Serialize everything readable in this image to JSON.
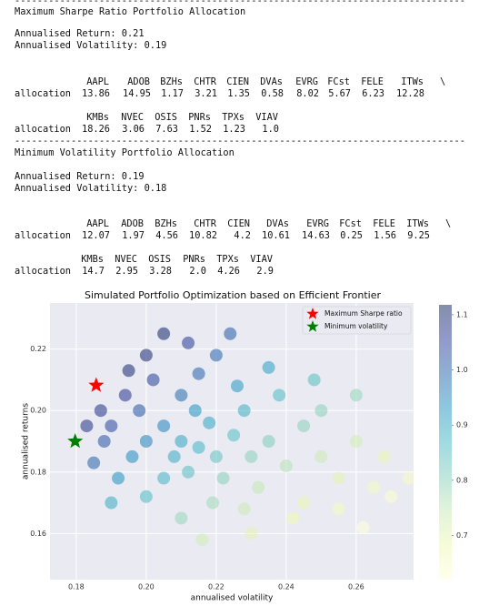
{
  "report": {
    "separator": "--------------------------------------------------------------------------------",
    "sections": [
      {
        "title": "Maximum Sharpe Ratio Portfolio Allocation",
        "return_line": "Annualised Return: 0.21",
        "volatility_line": "Annualised Volatility: 0.19",
        "row_label": "allocation",
        "continuation": "\\",
        "tables": [
          {
            "columns": [
              "AAPL",
              "ADOB",
              "BZHs",
              "CHTR",
              "CIEN",
              "DVAs",
              "EVRG",
              "FCst",
              "FELE",
              "ITWs"
            ],
            "values": [
              "13.86",
              "14.95",
              "1.17",
              "3.21",
              "1.35",
              "0.58",
              "8.02",
              "5.67",
              "6.23",
              "12.28"
            ]
          },
          {
            "columns": [
              "KMBs",
              "NVEC",
              "OSIS",
              "PNRs",
              "TPXs",
              "VIAV"
            ],
            "values": [
              "18.26",
              "3.06",
              "7.63",
              "1.52",
              "1.23",
              "1.0"
            ]
          }
        ]
      },
      {
        "title": "Minimum Volatility Portfolio Allocation",
        "return_line": "Annualised Return: 0.19",
        "volatility_line": "Annualised Volatility: 0.18",
        "row_label": "allocation",
        "continuation": "\\",
        "tables": [
          {
            "columns": [
              "AAPL",
              "ADOB",
              "BZHs",
              "CHTR",
              "CIEN",
              "DVAs",
              "EVRG",
              "FCst",
              "FELE",
              "ITWs"
            ],
            "values": [
              "12.07",
              "1.97",
              "4.56",
              "10.82",
              "4.2",
              "10.61",
              "14.63",
              "0.25",
              "1.56",
              "9.25"
            ]
          },
          {
            "columns": [
              "KMBs",
              "NVEC",
              "OSIS",
              "PNRs",
              "TPXs",
              "VIAV"
            ],
            "values": [
              "14.7",
              "2.95",
              "3.28",
              "2.0",
              "4.26",
              "2.9"
            ]
          }
        ]
      }
    ]
  },
  "chart_data": {
    "type": "scatter",
    "title": "Simulated Portfolio Optimization based on Efficient Frontier",
    "xlabel": "annualised volatility",
    "ylabel": "annualised returns",
    "xlim": [
      0.1725,
      0.2764
    ],
    "ylim": [
      0.145,
      0.235
    ],
    "xticks": [
      0.18,
      {
        "value": 0.2,
        "label": "0.20"
      },
      0.22,
      0.24,
      0.26
    ],
    "yticks": [
      0.16,
      0.18,
      {
        "value": 0.2,
        "label": "0.20"
      },
      0.22
    ],
    "grid": true,
    "legend": "upper right",
    "colormap": [
      "#ffffd9",
      "#edf8b1",
      "#c7e9b4",
      "#7fcdbb",
      "#41b6c4",
      "#1d91c0",
      "#225ea8",
      "#253494",
      "#081d58"
    ],
    "clim": [
      0.62,
      1.118
    ],
    "cticks": [
      0.7,
      0.8,
      0.9,
      {
        "value": 1.0,
        "label": "1.0"
      },
      1.1
    ],
    "x": [
      0.215,
      0.21,
      0.22,
      0.205,
      0.225,
      0.212,
      0.218,
      0.208,
      0.23,
      0.2,
      0.222,
      0.214,
      0.198,
      0.235,
      0.228,
      0.205,
      0.24,
      0.196,
      0.219,
      0.21,
      0.202,
      0.194,
      0.245,
      0.232,
      0.25,
      0.226,
      0.215,
      0.19,
      0.238,
      0.255,
      0.2,
      0.228,
      0.245,
      0.26,
      0.21,
      0.192,
      0.2,
      0.22,
      0.235,
      0.265,
      0.25,
      0.268,
      0.187,
      0.195,
      0.242,
      0.255,
      0.27,
      0.212,
      0.188,
      0.23,
      0.19,
      0.185,
      0.26,
      0.205,
      0.248,
      0.275,
      0.216,
      0.183,
      0.224,
      0.262
    ],
    "y": [
      0.188,
      0.19,
      0.185,
      0.195,
      0.192,
      0.18,
      0.196,
      0.185,
      0.185,
      0.19,
      0.178,
      0.2,
      0.2,
      0.19,
      0.2,
      0.178,
      0.182,
      0.185,
      0.17,
      0.205,
      0.21,
      0.205,
      0.195,
      0.175,
      0.185,
      0.208,
      0.212,
      0.195,
      0.205,
      0.178,
      0.172,
      0.168,
      0.17,
      0.19,
      0.165,
      0.178,
      0.218,
      0.218,
      0.214,
      0.175,
      0.2,
      0.185,
      0.2,
      0.213,
      0.165,
      0.168,
      0.172,
      0.222,
      0.19,
      0.16,
      0.17,
      0.183,
      0.205,
      0.225,
      0.21,
      0.178,
      0.158,
      0.195,
      0.225,
      0.162
    ],
    "c": [
      0.87,
      0.9,
      0.84,
      0.95,
      0.85,
      0.85,
      0.9,
      0.89,
      0.8,
      0.95,
      0.8,
      0.93,
      1.01,
      0.81,
      0.88,
      0.87,
      0.76,
      0.94,
      0.78,
      0.98,
      1.04,
      1.06,
      0.8,
      0.75,
      0.74,
      0.92,
      0.99,
      1.03,
      0.86,
      0.7,
      0.86,
      0.74,
      0.69,
      0.73,
      0.79,
      0.93,
      1.09,
      0.99,
      0.91,
      0.66,
      0.8,
      0.69,
      1.07,
      1.09,
      0.68,
      0.66,
      0.64,
      1.05,
      1.01,
      0.7,
      0.89,
      0.99,
      0.79,
      1.1,
      0.85,
      0.65,
      0.73,
      1.07,
      1.0,
      0.62
    ],
    "highlights": [
      {
        "name": "Maximum Sharpe ratio",
        "color": "#ff0000",
        "x": 0.1857,
        "y": 0.2082
      },
      {
        "name": "Minimum volatility",
        "color": "#008000",
        "x": 0.1797,
        "y": 0.19
      }
    ]
  }
}
